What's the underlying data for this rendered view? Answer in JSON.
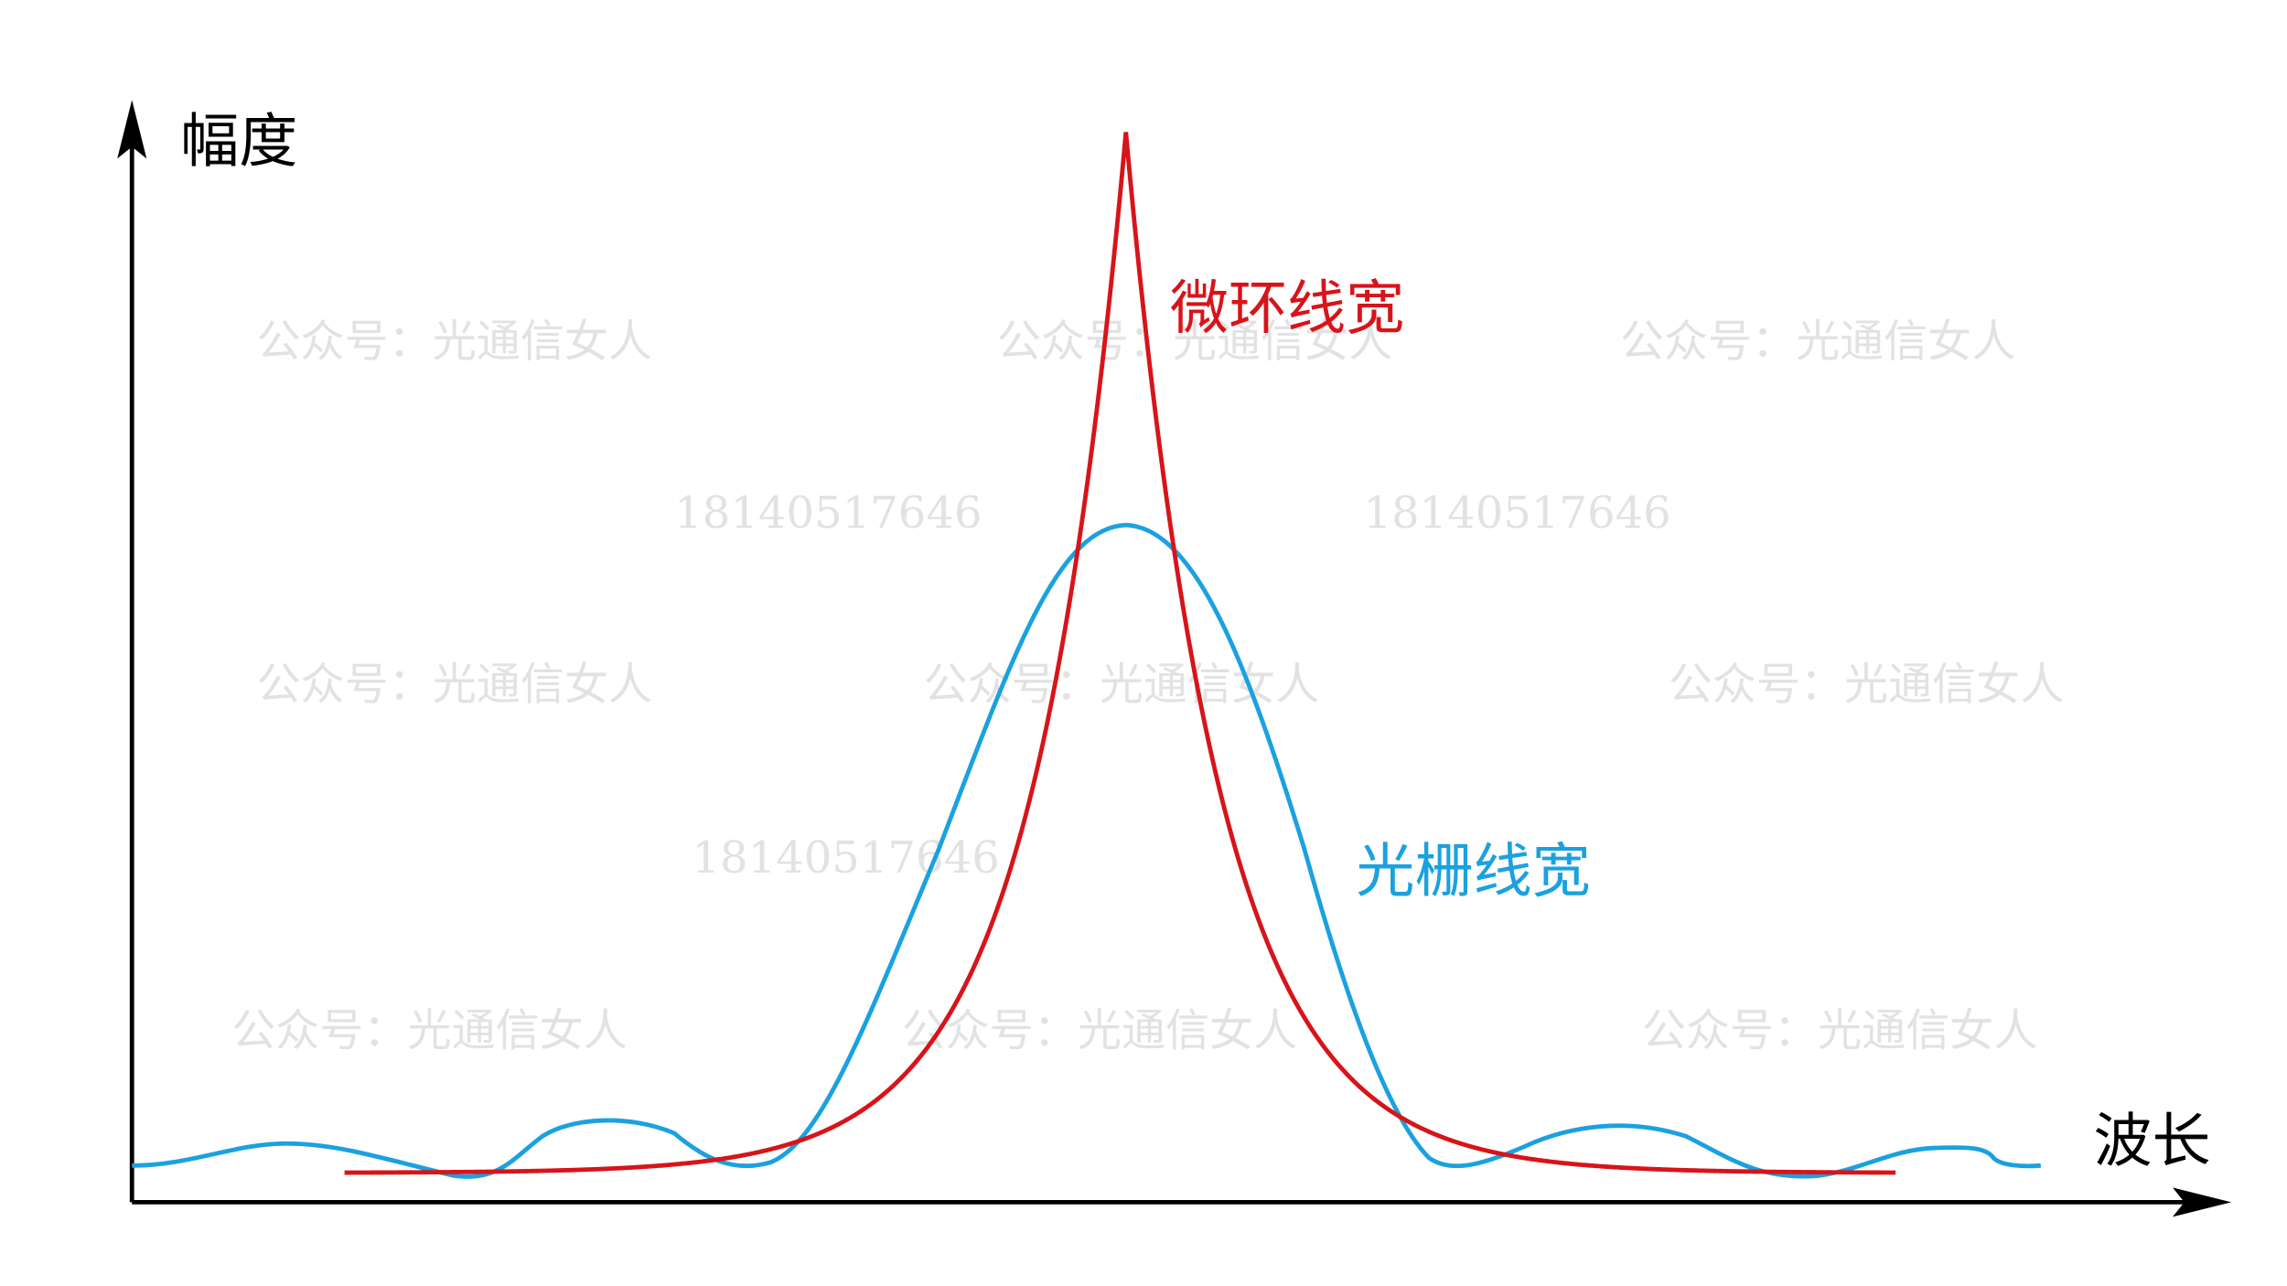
{
  "axes": {
    "y_label": "幅度",
    "x_label": "波长"
  },
  "curves": {
    "microring": {
      "label": "微环线宽",
      "color": "#d7141a"
    },
    "grating": {
      "label": "光栅线宽",
      "color": "#1ba1df"
    }
  },
  "watermarks": {
    "account": "公众号：光通信女人",
    "phone": "18140517646"
  }
}
